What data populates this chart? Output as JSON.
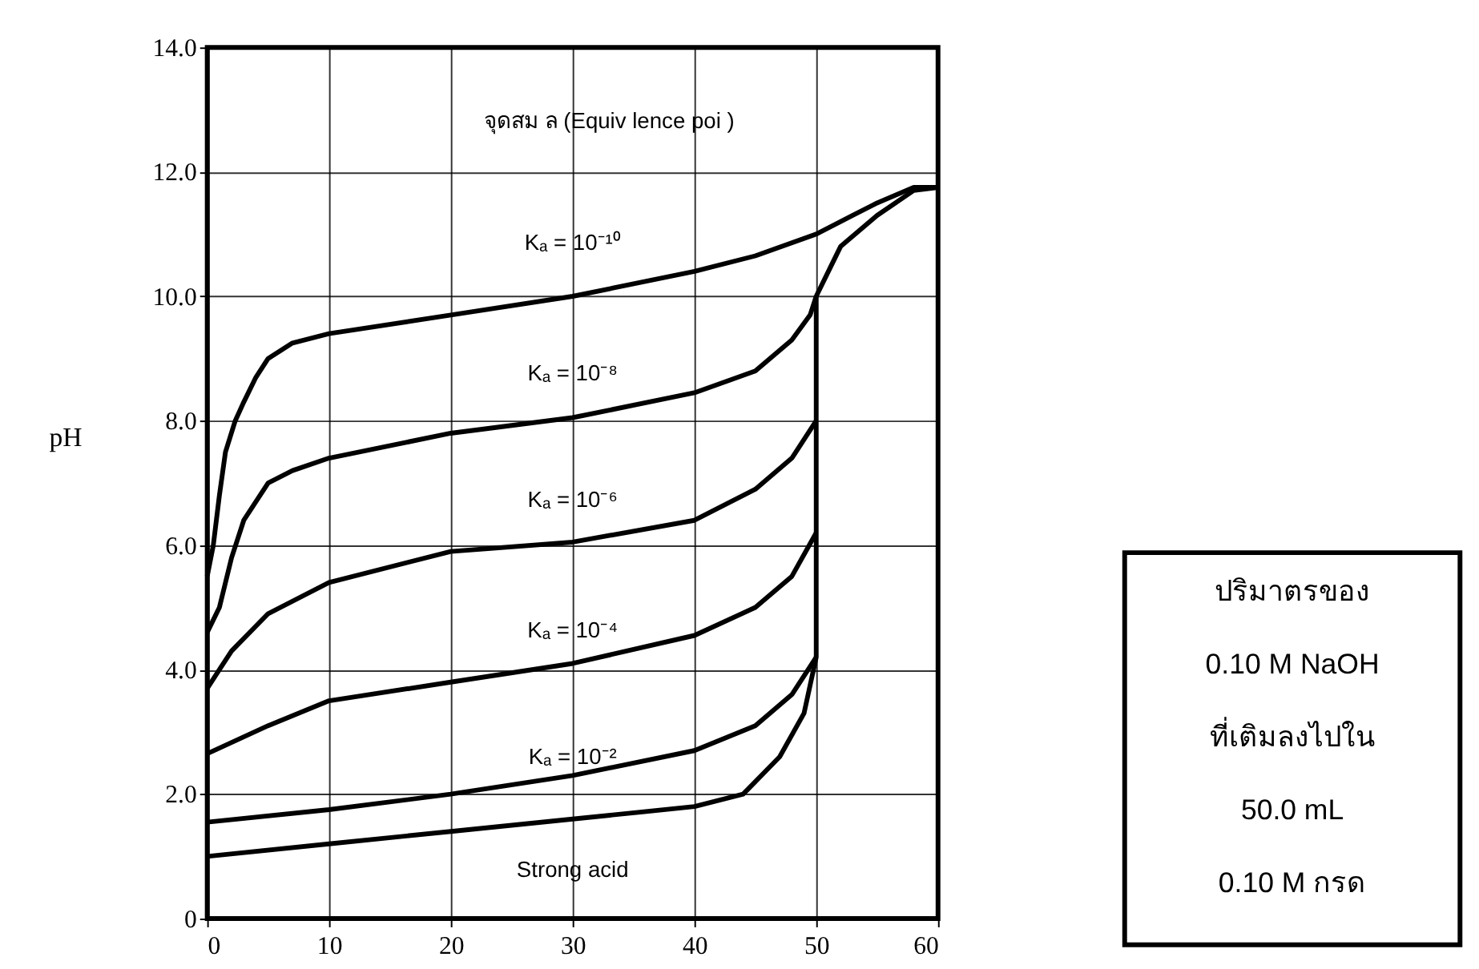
{
  "chart_data": {
    "type": "line",
    "ylabel": "pH",
    "xlim": [
      0,
      60
    ],
    "xticks": [
      0,
      10,
      20,
      30,
      40,
      50,
      60
    ],
    "ylim": [
      0,
      14
    ],
    "yticks": [
      {
        "value": 0,
        "label": "0"
      },
      {
        "value": 2,
        "label": "2.0"
      },
      {
        "value": 4,
        "label": "4.0"
      },
      {
        "value": 6,
        "label": "6.0"
      },
      {
        "value": 8,
        "label": "8.0"
      },
      {
        "value": 10,
        "label": "10.0"
      },
      {
        "value": 12,
        "label": "12.0"
      },
      {
        "value": 14,
        "label": "14.0"
      }
    ],
    "grid": true,
    "marker": "none",
    "line_style": "solid",
    "series": [
      {
        "color": "#000000",
        "x": [
          0,
          0.5,
          1,
          1.5,
          2.3,
          3,
          4,
          5,
          7,
          10,
          20,
          30,
          40,
          45,
          50,
          53,
          55,
          58,
          60
        ],
        "values": [
          5.5,
          6.0,
          6.8,
          7.5,
          8.0,
          8.3,
          8.7,
          9.0,
          9.25,
          9.4,
          9.7,
          10.0,
          10.4,
          10.65,
          11.0,
          11.3,
          11.5,
          11.75,
          11.75
        ]
      },
      {
        "color": "#000000",
        "x": [
          0,
          1,
          2,
          3,
          5,
          7,
          10,
          20,
          30,
          40,
          45,
          48,
          49.5,
          50,
          51,
          52,
          55,
          58,
          60
        ],
        "values": [
          4.6,
          5.0,
          5.8,
          6.4,
          7.0,
          7.2,
          7.4,
          7.8,
          8.05,
          8.45,
          8.8,
          9.3,
          9.7,
          10.0,
          10.4,
          10.8,
          11.3,
          11.7,
          11.75
        ]
      },
      {
        "color": "#000000",
        "x": [
          0,
          1,
          2,
          5,
          10,
          20,
          30,
          40,
          45,
          48,
          50
        ],
        "values": [
          3.7,
          4.0,
          4.3,
          4.9,
          5.4,
          5.9,
          6.05,
          6.4,
          6.9,
          7.4,
          8.0
        ]
      },
      {
        "color": "#000000",
        "x": [
          0,
          5,
          10,
          20,
          30,
          40,
          45,
          48,
          50
        ],
        "values": [
          2.65,
          3.1,
          3.5,
          3.8,
          4.1,
          4.55,
          5.0,
          5.5,
          6.2
        ]
      },
      {
        "color": "#000000",
        "x": [
          0,
          10,
          20,
          30,
          40,
          45,
          48,
          50
        ],
        "values": [
          1.55,
          1.75,
          2.0,
          2.3,
          2.7,
          3.1,
          3.6,
          4.2
        ]
      },
      {
        "color": "#000000",
        "x": [
          0,
          10,
          20,
          30,
          40,
          44,
          47,
          49,
          50,
          50
        ],
        "values": [
          1.0,
          1.2,
          1.4,
          1.6,
          1.8,
          2.0,
          2.6,
          3.3,
          4.2,
          10.0
        ]
      }
    ],
    "annotations": [
      "จุดสม ล (Equiv lence poi )",
      "ปริมาตรของ\n0.10 M NaOH\nที่เติมลงไปใน\n50.0 mL\n0.10 M กรด",
      "Kₐ = 10⁻¹⁰",
      "Kₐ = 10⁻⁸",
      "Kₐ = 10⁻⁶",
      "Kₐ = 10⁻⁴",
      "Kₐ = 10⁻²",
      "Strong acid"
    ]
  }
}
